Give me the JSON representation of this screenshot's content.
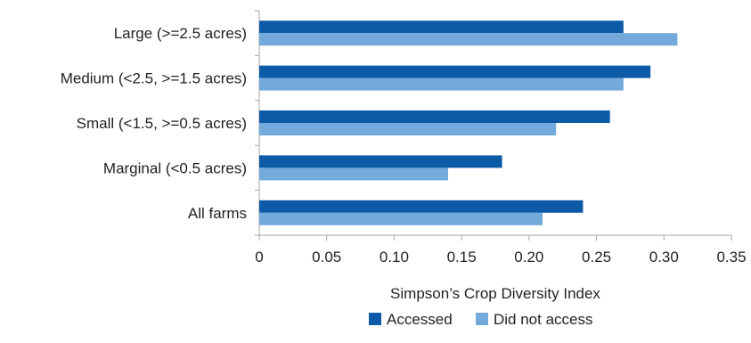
{
  "chart_data": {
    "type": "bar",
    "orientation": "horizontal",
    "title": "",
    "xlabel": "Simpson’s Crop Diversity Index",
    "ylabel": "",
    "categories": [
      "Large (>=2.5 acres)",
      "Medium (<2.5, >=1.5 acres)",
      "Small (<1.5, >=0.5 acres)",
      "Marginal (<0.5 acres)",
      "All farms"
    ],
    "series": [
      {
        "name": "Accessed",
        "color": "#0d5ba6",
        "values": [
          0.27,
          0.29,
          0.26,
          0.18,
          0.24
        ]
      },
      {
        "name": "Did not access",
        "color": "#74a9db",
        "values": [
          0.31,
          0.27,
          0.22,
          0.14,
          0.21
        ]
      }
    ],
    "xlim": [
      0,
      0.35
    ],
    "x_ticks": [
      0,
      0.05,
      0.1,
      0.15,
      0.2,
      0.25,
      0.3,
      0.35
    ],
    "x_tick_labels": [
      "0",
      "0.05",
      "0.10",
      "0.15",
      "0.20",
      "0.25",
      "0.30",
      "0.35"
    ],
    "grid": false,
    "legend_position": "bottom-center"
  }
}
